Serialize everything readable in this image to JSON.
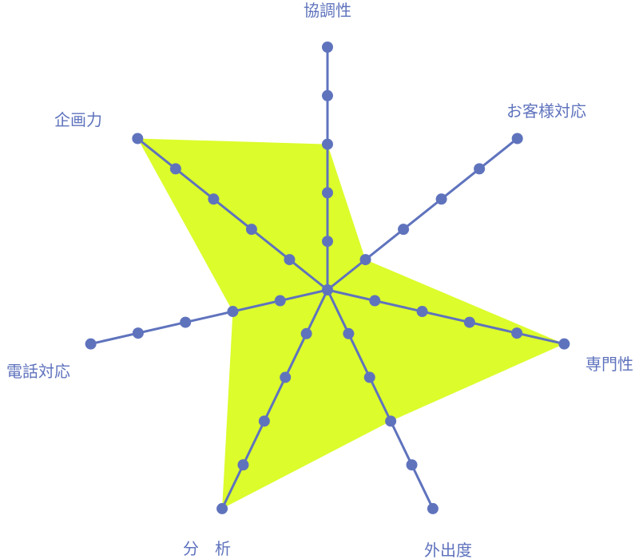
{
  "chart_data": {
    "type": "radar",
    "categories": [
      "協調性",
      "お客様対応",
      "専門性",
      "外出度",
      "分　析",
      "電話対応",
      "企画力"
    ],
    "values": [
      3,
      1,
      5,
      3,
      5,
      2,
      5
    ],
    "rlim": [
      0,
      5
    ],
    "ticks": [
      1,
      2,
      3,
      4,
      5
    ],
    "grid": false,
    "colors": {
      "axis": "#5f73bd",
      "fill": "#dcfc2c",
      "label": "#5f73bd"
    }
  }
}
